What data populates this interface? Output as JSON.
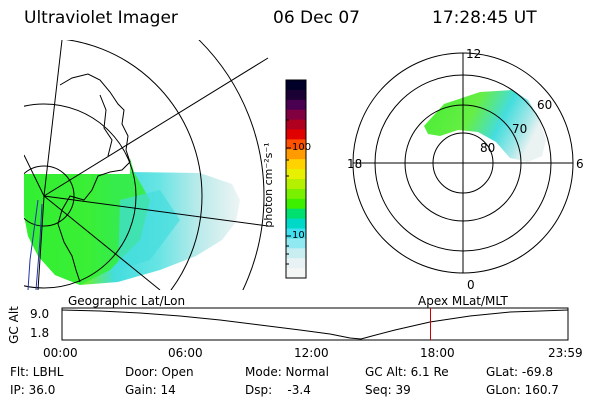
{
  "header": {
    "title": "Ultraviolet Imager",
    "date": "06 Dec 07",
    "time": "17:28:45 UT"
  },
  "colorbar": {
    "label": "photon cm⁻²s⁻¹",
    "ticks": [
      "100",
      "10"
    ],
    "scale": "log",
    "colors": [
      "#000028",
      "#1a0033",
      "#4a0050",
      "#800040",
      "#b00020",
      "#e00000",
      "#ff5000",
      "#ff9a00",
      "#ffd200",
      "#e6f000",
      "#b4f000",
      "#78f000",
      "#3cf000",
      "#00e070",
      "#00d8c8",
      "#40e0f0",
      "#90e8f0",
      "#c8eef2",
      "#e8f2f4",
      "#f4f6f6"
    ]
  },
  "left_panel": {
    "label": "Geographic Lat/Lon"
  },
  "right_panel": {
    "label": "Apex MLat/MLT",
    "mlt_labels": {
      "top": "12",
      "left": "18",
      "right": "6",
      "bottom": "0"
    },
    "lat_labels": [
      "60",
      "70",
      "80"
    ]
  },
  "altitude_plot": {
    "ylabel": "GC Alt",
    "yticks": [
      "9.0",
      "1.8"
    ],
    "xticks": [
      "00:00",
      "06:00",
      "12:00",
      "18:00",
      "23:59"
    ],
    "current_time_hours": 17.48,
    "marker_color": "#cc0000"
  },
  "status": {
    "flt": "Flt: LBHL",
    "ip": "IP: 36.0",
    "door": "Door: Open",
    "gain": "Gain: 14",
    "mode": "Mode: Normal",
    "dsp": "Dsp:    -3.4",
    "gc_alt": "GC Alt: 6.1 Re",
    "seq": "Seq: 39",
    "glat": "GLat: -69.8",
    "glon": "GLon: 160.7"
  },
  "colors": {
    "aurora_green": "#33ee33",
    "aurora_cyan": "#44dddd",
    "marker": "#cc0000"
  }
}
